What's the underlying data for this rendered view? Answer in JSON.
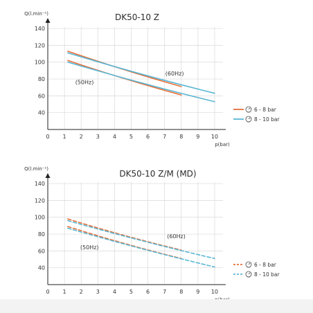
{
  "colors": {
    "orange": "#e8703a",
    "blue": "#5ab7d4",
    "grid": "#d9d9d9",
    "axis": "#222222"
  },
  "chart_data": [
    {
      "type": "line",
      "title": "DK50-10 Z",
      "ylabel": "Q(l.min⁻¹)",
      "xlabel": "p(bar)",
      "xlim": [
        0,
        10.5
      ],
      "ylim": [
        20,
        145
      ],
      "xticks": [
        0,
        1,
        2,
        3,
        4,
        5,
        6,
        7,
        8,
        9,
        10
      ],
      "yticks": [
        40,
        60,
        80,
        100,
        120,
        140
      ],
      "grid": true,
      "line_style": "solid",
      "annotations": [
        {
          "text": "(60Hz)",
          "x": 7.6,
          "y": 84
        },
        {
          "text": "(50Hz)",
          "x": 2.2,
          "y": 74
        }
      ],
      "legend": {
        "placement": "right",
        "entries": [
          {
            "label": "6 - 8 bar",
            "color": "orange"
          },
          {
            "label": "8 - 10 bar",
            "color": "blue"
          }
        ]
      },
      "series": [
        {
          "freq": "60Hz",
          "range": "6 - 8 bar",
          "color": "orange",
          "x": [
            1.2,
            8.0
          ],
          "y": [
            113,
            71
          ],
          "curve": 0.9
        },
        {
          "freq": "60Hz",
          "range": "8 - 10 bar",
          "color": "blue",
          "x": [
            1.2,
            10.0
          ],
          "y": [
            111,
            63
          ],
          "curve": 0.9
        },
        {
          "freq": "50Hz",
          "range": "6 - 8 bar",
          "color": "orange",
          "x": [
            1.2,
            8.0
          ],
          "y": [
            102,
            61
          ],
          "curve": 0.9
        },
        {
          "freq": "50Hz",
          "range": "8 - 10 bar",
          "color": "blue",
          "x": [
            1.2,
            10.0
          ],
          "y": [
            100,
            53
          ],
          "curve": 0.9
        }
      ]
    },
    {
      "type": "line",
      "title": "DK50-10 Z/M (MD)",
      "ylabel": "Q(l.min⁻¹)",
      "xlabel": "p(bar)",
      "xlim": [
        0,
        10.5
      ],
      "ylim": [
        20,
        145
      ],
      "xticks": [
        0,
        1,
        2,
        3,
        4,
        5,
        6,
        7,
        8,
        9,
        10
      ],
      "yticks": [
        40,
        60,
        80,
        100,
        120,
        140
      ],
      "grid": true,
      "line_style": "dashed",
      "annotations": [
        {
          "text": "(60Hz)",
          "x": 7.7,
          "y": 75
        },
        {
          "text": "(50Hz)",
          "x": 2.5,
          "y": 62
        }
      ],
      "legend": {
        "placement": "right",
        "entries": [
          {
            "label": "6 - 8 bar",
            "color": "orange"
          },
          {
            "label": "8 - 10 bar",
            "color": "blue"
          }
        ]
      },
      "series": [
        {
          "freq": "60Hz",
          "range": "6 - 8 bar",
          "color": "orange",
          "x": [
            1.2,
            8.0
          ],
          "y": [
            98,
            61
          ],
          "curve": 0.95
        },
        {
          "freq": "60Hz",
          "range": "8 - 10 bar",
          "color": "blue",
          "x": [
            1.2,
            10.0
          ],
          "y": [
            96,
            51
          ],
          "curve": 0.95
        },
        {
          "freq": "50Hz",
          "range": "6 - 8 bar",
          "color": "orange",
          "x": [
            1.2,
            8.0
          ],
          "y": [
            89,
            51
          ],
          "curve": 0.95
        },
        {
          "freq": "50Hz",
          "range": "8 - 10 bar",
          "color": "blue",
          "x": [
            1.2,
            10.0
          ],
          "y": [
            87,
            41
          ],
          "curve": 0.95
        }
      ]
    }
  ]
}
